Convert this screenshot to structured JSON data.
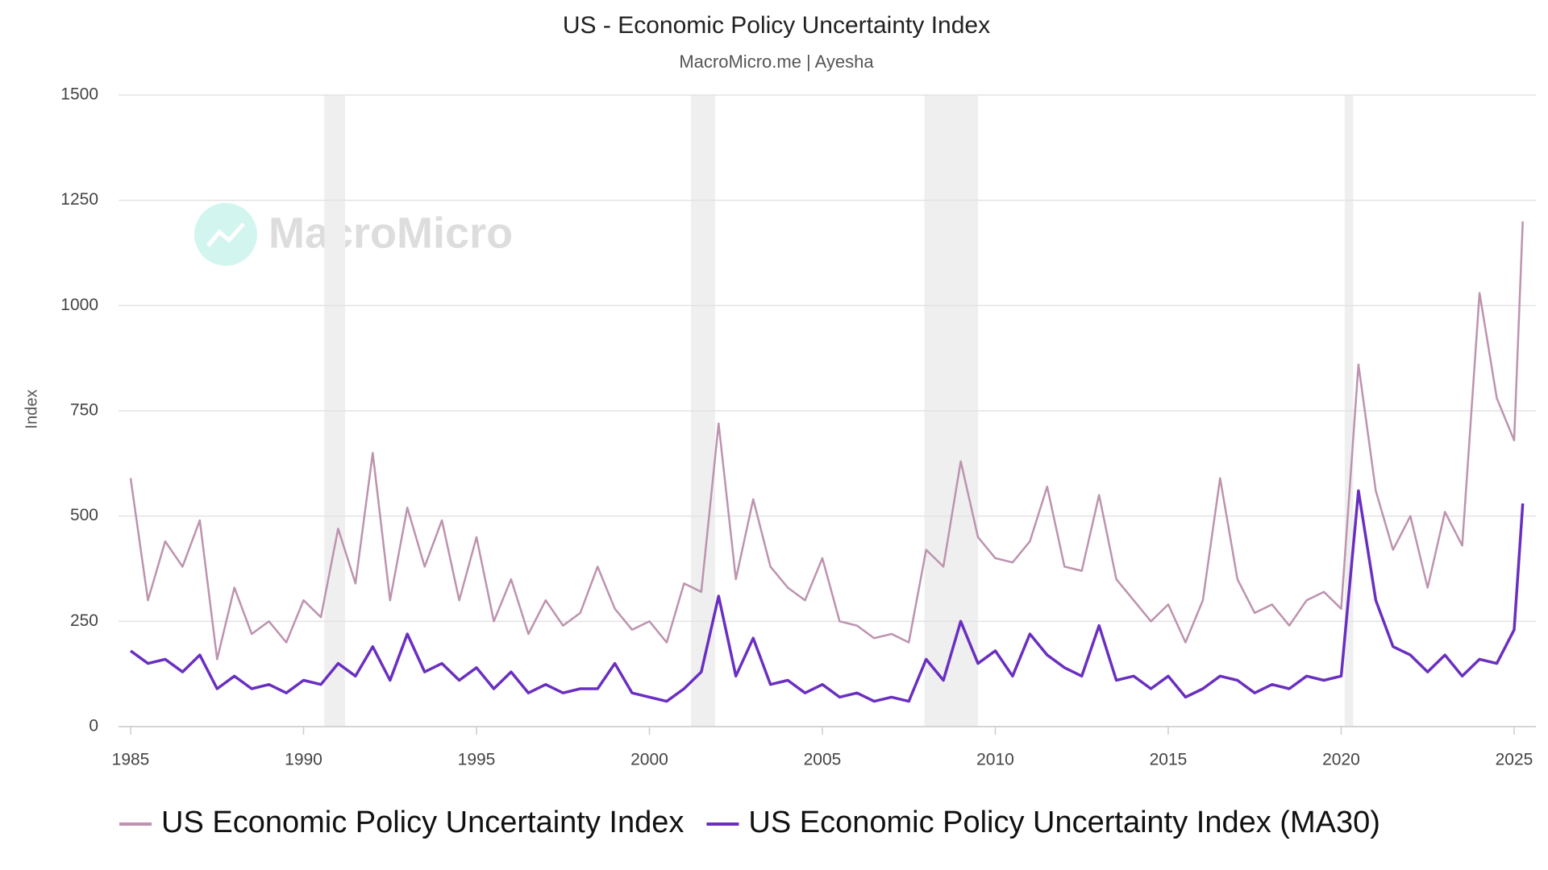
{
  "chart_data": {
    "type": "line",
    "title": "US - Economic Policy Uncertainty Index",
    "subtitle": "MacroMicro.me | Ayesha",
    "watermark": "MacroMicro",
    "y_label": "Index",
    "x": [
      1985,
      1985.5,
      1986,
      1986.5,
      1987,
      1987.5,
      1988,
      1988.5,
      1989,
      1989.5,
      1990,
      1990.5,
      1991,
      1991.5,
      1992,
      1992.5,
      1993,
      1993.5,
      1994,
      1994.5,
      1995,
      1995.5,
      1996,
      1996.5,
      1997,
      1997.5,
      1998,
      1998.5,
      1999,
      1999.5,
      2000,
      2000.5,
      2001,
      2001.5,
      2002,
      2002.5,
      2003,
      2003.5,
      2004,
      2004.5,
      2005,
      2005.5,
      2006,
      2006.5,
      2007,
      2007.5,
      2008,
      2008.5,
      2009,
      2009.5,
      2010,
      2010.5,
      2011,
      2011.5,
      2012,
      2012.5,
      2013,
      2013.5,
      2014,
      2014.5,
      2015,
      2015.5,
      2016,
      2016.5,
      2017,
      2017.5,
      2018,
      2018.5,
      2019,
      2019.5,
      2020,
      2020.5,
      2021,
      2021.5,
      2022,
      2022.5,
      2023,
      2023.5,
      2024,
      2024.5,
      2025,
      2025.25
    ],
    "series": [
      {
        "name": "US Economic Policy Uncertainty Index",
        "color": "#bd93ae",
        "values": [
          590,
          300,
          440,
          380,
          490,
          160,
          330,
          220,
          250,
          200,
          300,
          260,
          470,
          340,
          650,
          300,
          520,
          380,
          490,
          300,
          450,
          250,
          350,
          220,
          300,
          240,
          270,
          380,
          280,
          230,
          250,
          200,
          340,
          320,
          720,
          350,
          540,
          380,
          330,
          300,
          400,
          250,
          240,
          210,
          220,
          200,
          420,
          380,
          630,
          450,
          400,
          390,
          440,
          570,
          380,
          370,
          550,
          350,
          300,
          250,
          290,
          200,
          300,
          590,
          350,
          270,
          290,
          240,
          300,
          320,
          280,
          860,
          560,
          420,
          500,
          330,
          510,
          430,
          1030,
          780,
          680,
          1200
        ]
      },
      {
        "name": "US Economic Policy Uncertainty Index (MA30)",
        "color": "#6a2fc0",
        "values": [
          180,
          150,
          160,
          130,
          170,
          90,
          120,
          90,
          100,
          80,
          110,
          100,
          150,
          120,
          190,
          110,
          220,
          130,
          150,
          110,
          140,
          90,
          130,
          80,
          100,
          80,
          90,
          90,
          150,
          80,
          70,
          60,
          90,
          130,
          310,
          120,
          210,
          100,
          110,
          80,
          100,
          70,
          80,
          60,
          70,
          60,
          160,
          110,
          250,
          150,
          180,
          120,
          220,
          170,
          140,
          120,
          240,
          110,
          120,
          90,
          120,
          70,
          90,
          120,
          110,
          80,
          100,
          90,
          120,
          110,
          120,
          560,
          300,
          190,
          170,
          130,
          170,
          120,
          160,
          150,
          230,
          530
        ]
      }
    ],
    "recessions": [
      [
        1990.6,
        1991.2
      ],
      [
        2001.2,
        2001.9
      ],
      [
        2007.95,
        2009.5
      ],
      [
        2020.1,
        2020.35
      ]
    ],
    "xlim": [
      1984.65,
      2025.63
    ],
    "xticks": [
      1985,
      1990,
      1995,
      2000,
      2005,
      2010,
      2015,
      2020,
      2025
    ],
    "ylim": [
      0,
      1500
    ],
    "yticks": [
      0,
      250,
      500,
      750,
      1000,
      1250,
      1500
    ],
    "grid": true
  }
}
